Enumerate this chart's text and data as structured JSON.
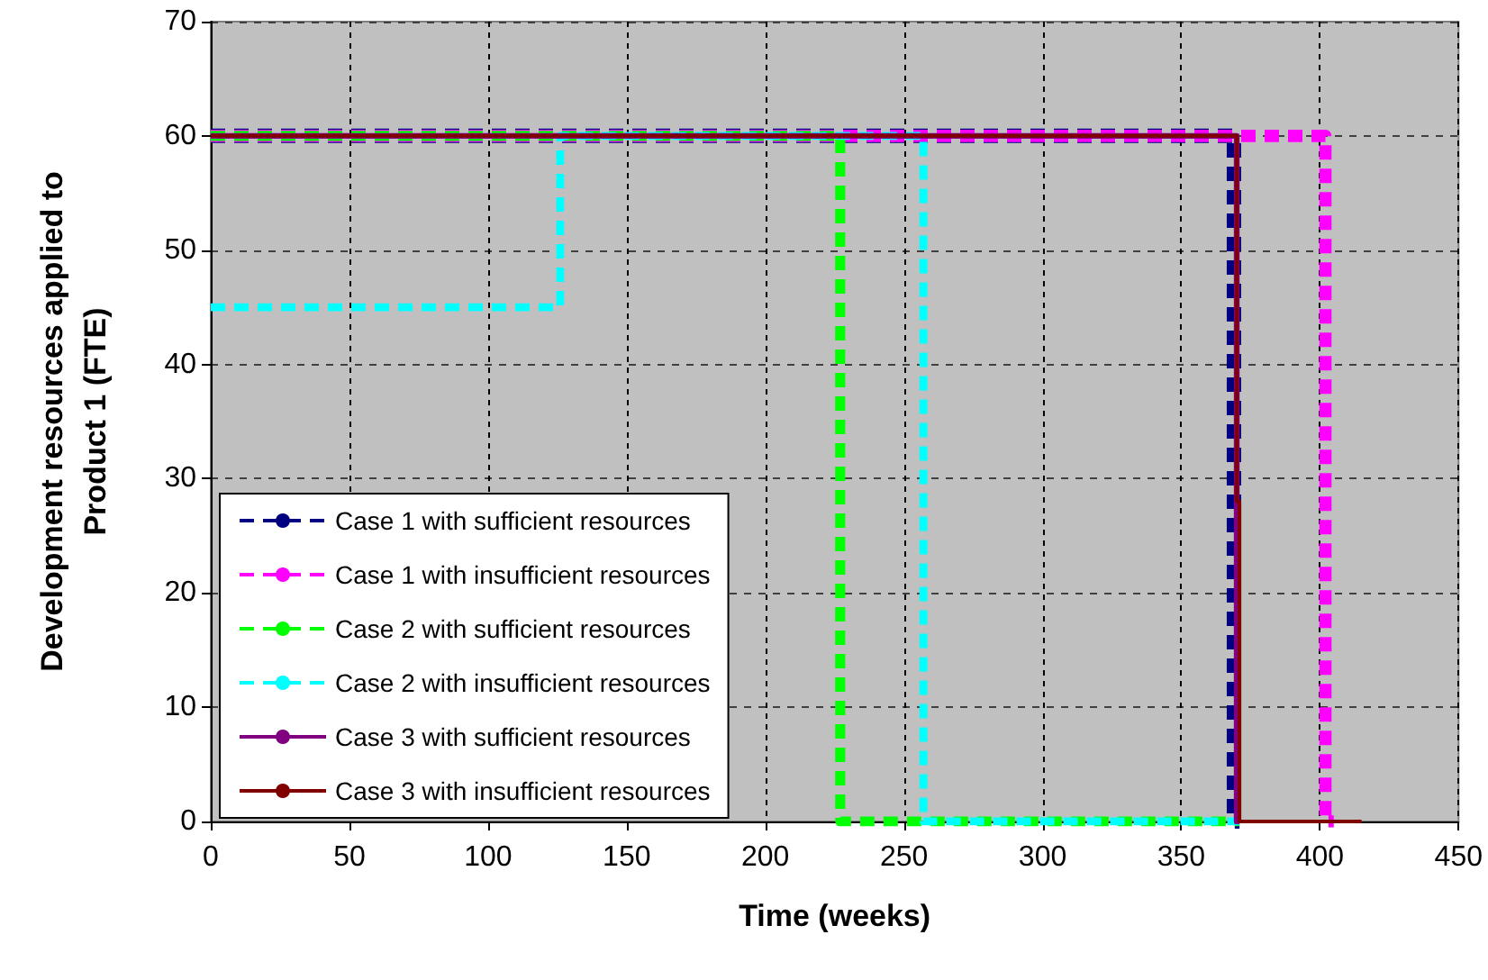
{
  "chart_data": {
    "type": "line",
    "xlabel": "Time (weeks)",
    "ylabel": "Development resources applied to\nProduct 1 (FTE)",
    "xlim": [
      0,
      450
    ],
    "xticks": [
      0,
      50,
      100,
      150,
      200,
      250,
      300,
      350,
      400,
      450
    ],
    "ylim": [
      0,
      70
    ],
    "yticks": [
      0,
      10,
      20,
      30,
      40,
      50,
      60,
      70
    ],
    "grid": true,
    "legend": "bottom left",
    "marker": "none",
    "series": [
      {
        "name": "Case 1 with sufficient resources",
        "color": "#000080",
        "line_style": "dashed",
        "x": [
          0,
          369,
          369,
          371
        ],
        "values": [
          60,
          60,
          0,
          0
        ]
      },
      {
        "name": "Case 1 with insufficient resources",
        "color": "#ff00ff",
        "line_style": "dashed",
        "x": [
          0,
          402,
          402,
          405
        ],
        "values": [
          60,
          60,
          0,
          0
        ]
      },
      {
        "name": "Case 2 with sufficient resources",
        "color": "#00ff00",
        "line_style": "dashed",
        "x": [
          0,
          227,
          227,
          371
        ],
        "values": [
          60,
          60,
          0,
          0
        ]
      },
      {
        "name": "Case 2 with insufficient resources",
        "color": "#00ffff",
        "line_style": "dashed",
        "x": [
          0,
          126,
          126,
          257,
          257,
          371
        ],
        "values": [
          45,
          45,
          60,
          60,
          0,
          0
        ]
      },
      {
        "name": "Case 3 with sufficient resources",
        "color": "#800080",
        "line_style": "solid",
        "x": [
          0,
          370,
          370,
          371
        ],
        "values": [
          60,
          60,
          0,
          0
        ]
      },
      {
        "name": "Case 3 with insufficient resources",
        "color": "#800000",
        "line_style": "solid",
        "x": [
          0,
          370,
          370,
          371,
          371,
          415
        ],
        "values": [
          60,
          60,
          28,
          28,
          0,
          0
        ]
      }
    ]
  }
}
